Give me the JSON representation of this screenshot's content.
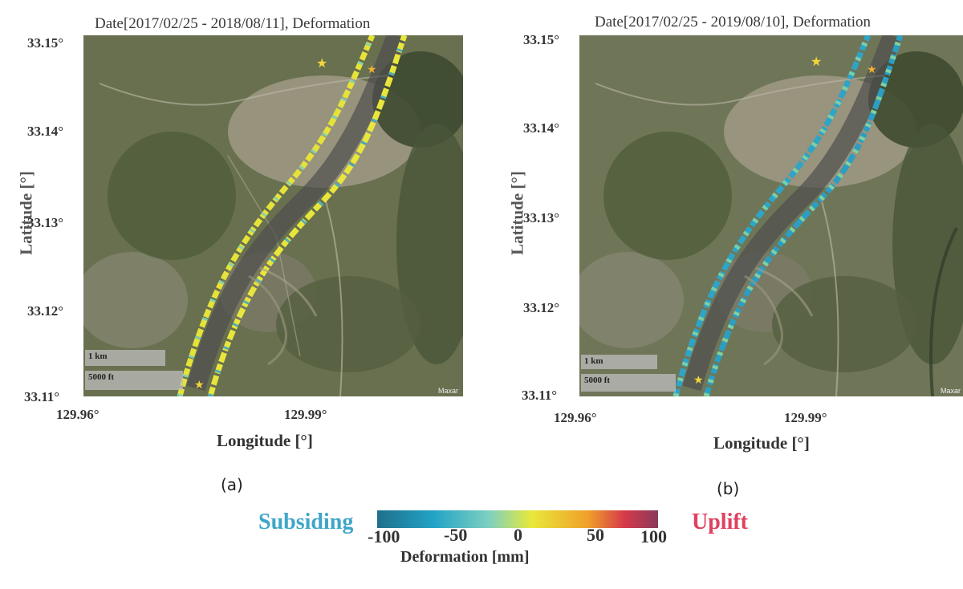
{
  "panels": [
    {
      "title": "Date[2017/02/25 - 2018/08/11], Deformation",
      "y_ticks": [
        "33.15°",
        "33.14°",
        "33.13°",
        "33.12°",
        "33.11°"
      ],
      "x_ticks": [
        "129.96°",
        "129.99°"
      ],
      "xlabel": "Longitude [°]",
      "ylabel": "Latitude [°]",
      "sublabel": "(a)",
      "scale_km": "1 km",
      "scale_ft": "5000 ft",
      "credit": "Maxar",
      "dominant_deformation_mm": 0
    },
    {
      "title": "Date[2017/02/25 - 2019/08/10], Deformation",
      "y_ticks": [
        "33.15°",
        "33.14°",
        "33.13°",
        "33.12°",
        "33.11°"
      ],
      "x_ticks": [
        "129.96°",
        "129.99°"
      ],
      "xlabel": "Longitude [°]",
      "ylabel": "Latitude [°]",
      "sublabel": "(b)",
      "scale_km": "1 km",
      "scale_ft": "5000 ft",
      "credit": "Maxar",
      "dominant_deformation_mm": -50
    }
  ],
  "colorbar": {
    "left_label": "Subsiding",
    "right_label": "Uplift",
    "left_color": "#3fa6c9",
    "right_color": "#e0415f",
    "ticks": [
      "-100",
      "-50",
      "0",
      "50",
      "100"
    ],
    "range": [
      -100,
      100
    ],
    "title": "Deformation [mm]",
    "colors": [
      "#1f6f8b",
      "#22a3c6",
      "#7fd0c0",
      "#e8e83a",
      "#f0a02a",
      "#d63a4a",
      "#8a3a5a"
    ]
  }
}
